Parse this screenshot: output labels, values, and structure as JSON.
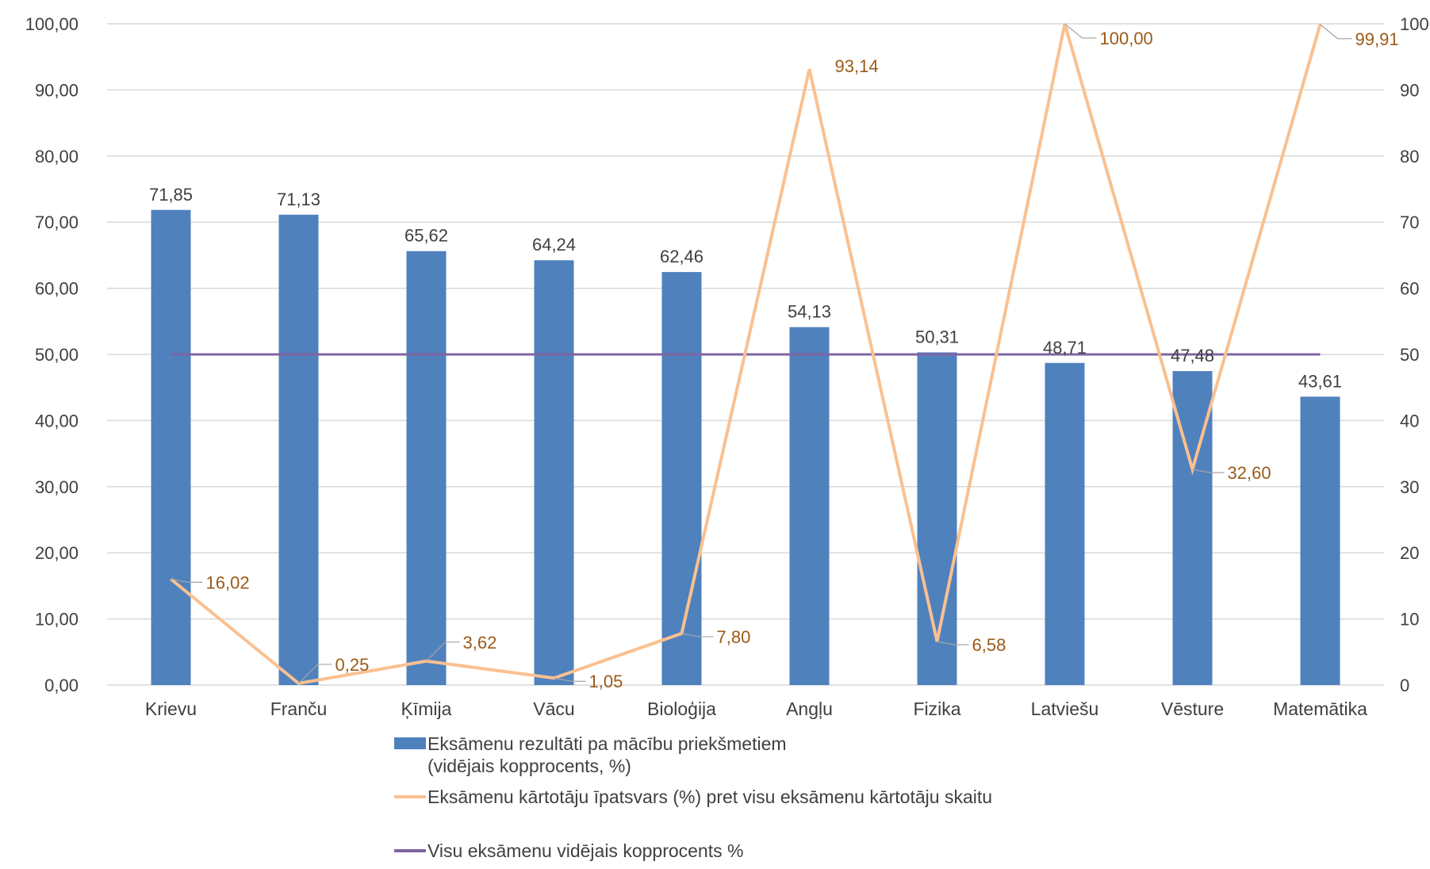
{
  "chart_data": {
    "type": "bar",
    "categories": [
      "Krievu",
      "Franču",
      "Ķīmija",
      "Vācu",
      "Bioloģija",
      "Angļu",
      "Fizika",
      "Latviešu",
      "Vēsture",
      "Matemātika"
    ],
    "series": [
      {
        "name": "Eksāmenu rezultāti pa mācību priekšmetiem (vidējais kopprocents, %)",
        "legend_lines": [
          "Eksāmenu rezultāti pa mācību priekšmetiem",
          "(vidējais kopprocents, %)"
        ],
        "type": "bar",
        "axis": "left",
        "color": "#4f81bd",
        "values": [
          71.85,
          71.13,
          65.62,
          64.24,
          62.46,
          54.13,
          50.31,
          48.71,
          47.48,
          43.61
        ],
        "labels": [
          "71,85",
          "71,13",
          "65,62",
          "64,24",
          "62,46",
          "54,13",
          "50,31",
          "48,71",
          "47,48",
          "43,61"
        ]
      },
      {
        "name": "Eksāmenu kārtotāju īpatsvars (%) pret visu eksāmenu kārtotāju skaitu",
        "type": "line",
        "axis": "right",
        "color": "#fac090",
        "values": [
          16.02,
          0.25,
          3.62,
          1.05,
          7.8,
          93.14,
          6.58,
          100.0,
          32.6,
          99.91
        ],
        "labels": [
          "16,02",
          "0,25",
          "3,62",
          "1,05",
          "7,80",
          "93,14",
          "6,58",
          "100,00",
          "32,60",
          "99,91"
        ]
      },
      {
        "name": "Visu eksāmenu vidējais kopprocents %",
        "type": "line",
        "axis": "left",
        "color": "#8064a2",
        "values": [
          50,
          50,
          50,
          50,
          50,
          50,
          50,
          50,
          50,
          50
        ]
      }
    ],
    "y_left": {
      "ylim": [
        0,
        100
      ],
      "ticks": [
        "0,00",
        "10,00",
        "20,00",
        "30,00",
        "40,00",
        "50,00",
        "60,00",
        "70,00",
        "80,00",
        "90,00",
        "100,00"
      ]
    },
    "y_right": {
      "ylim": [
        0,
        100
      ],
      "ticks": [
        "0",
        "10",
        "20",
        "30",
        "40",
        "50",
        "60",
        "70",
        "80",
        "90",
        "100"
      ]
    },
    "grid": true,
    "legend_position": "bottom"
  }
}
